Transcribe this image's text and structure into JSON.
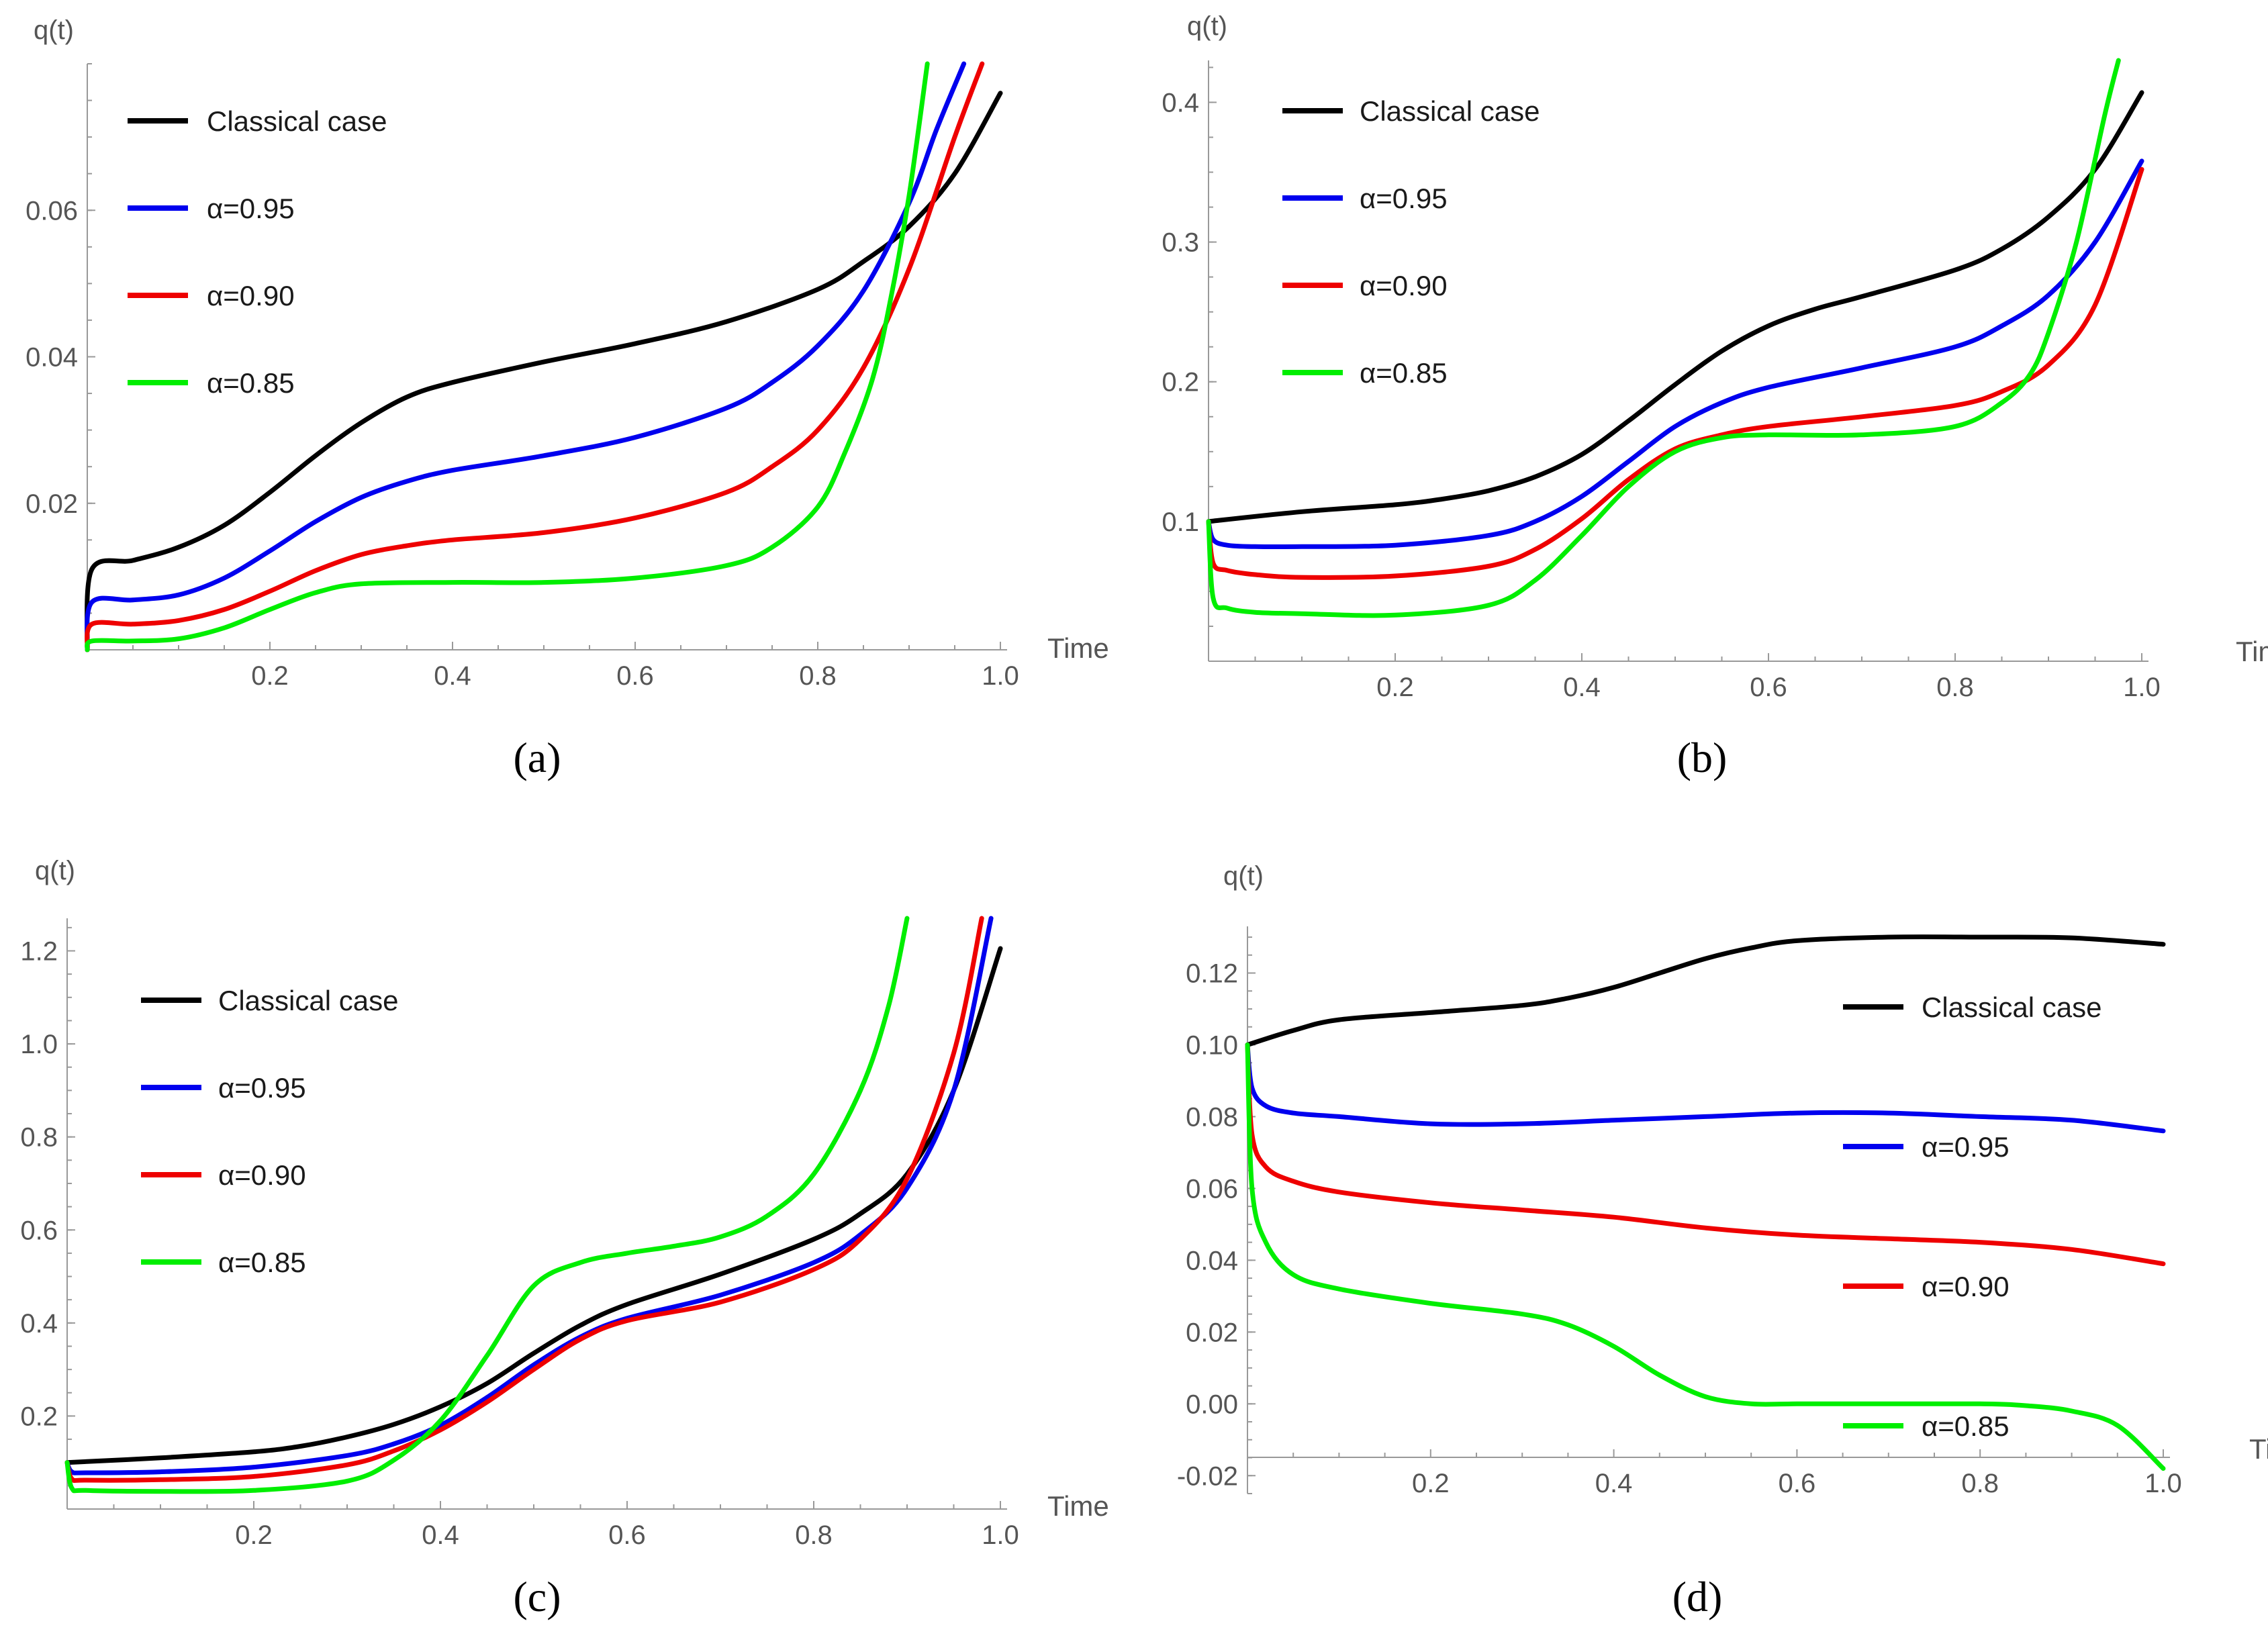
{
  "chart_data": [
    {
      "type": "line",
      "panel_label": "(a)",
      "ylabel": "q(t)",
      "xlabel": "Time",
      "xlim": [
        0,
        1.0
      ],
      "ylim": [
        0,
        0.08
      ],
      "x_ticks": [
        "0.2",
        "0.4",
        "0.6",
        "0.8",
        "1.0"
      ],
      "y_ticks": [
        "0.02",
        "0.04",
        "0.06"
      ],
      "legend_position": "top-left",
      "series": [
        {
          "name": "Classical case",
          "color": "#000000",
          "x": [
            0,
            0.005,
            0.05,
            0.1,
            0.15,
            0.2,
            0.25,
            0.3,
            0.35,
            0.4,
            0.5,
            0.6,
            0.7,
            0.8,
            0.85,
            0.9,
            0.95,
            1.0
          ],
          "values": [
            0.0,
            0.011,
            0.0122,
            0.014,
            0.017,
            0.0215,
            0.0265,
            0.031,
            0.0345,
            0.0365,
            0.0393,
            0.0418,
            0.0448,
            0.0492,
            0.053,
            0.0578,
            0.065,
            0.076
          ]
        },
        {
          "name": "α=0.95",
          "color": "#0000ee",
          "x": [
            0,
            0.005,
            0.05,
            0.1,
            0.15,
            0.2,
            0.25,
            0.3,
            0.35,
            0.4,
            0.5,
            0.6,
            0.7,
            0.75,
            0.8,
            0.85,
            0.9,
            0.93,
            0.96
          ],
          "values": [
            0.0,
            0.0065,
            0.0068,
            0.0075,
            0.0098,
            0.0135,
            0.0175,
            0.0208,
            0.023,
            0.0245,
            0.0265,
            0.029,
            0.033,
            0.0365,
            0.0415,
            0.049,
            0.061,
            0.071,
            0.08
          ]
        },
        {
          "name": "α=0.90",
          "color": "#ee0000",
          "x": [
            0,
            0.005,
            0.05,
            0.1,
            0.15,
            0.2,
            0.25,
            0.3,
            0.35,
            0.4,
            0.5,
            0.6,
            0.7,
            0.75,
            0.8,
            0.85,
            0.9,
            0.95,
            0.98
          ],
          "values": [
            0.0,
            0.0035,
            0.0035,
            0.004,
            0.0055,
            0.008,
            0.0108,
            0.013,
            0.0142,
            0.015,
            0.016,
            0.018,
            0.0215,
            0.025,
            0.03,
            0.0385,
            0.052,
            0.07,
            0.08
          ]
        },
        {
          "name": "α=0.85",
          "color": "#00ee00",
          "x": [
            0,
            0.005,
            0.05,
            0.1,
            0.15,
            0.2,
            0.25,
            0.3,
            0.4,
            0.5,
            0.6,
            0.7,
            0.75,
            0.8,
            0.83,
            0.86,
            0.88,
            0.9,
            0.92
          ],
          "values": [
            0.0,
            0.0012,
            0.0012,
            0.0015,
            0.003,
            0.0055,
            0.0078,
            0.009,
            0.0092,
            0.0092,
            0.0098,
            0.0115,
            0.014,
            0.0195,
            0.027,
            0.037,
            0.048,
            0.062,
            0.08
          ]
        }
      ]
    },
    {
      "type": "line",
      "panel_label": "(b)",
      "ylabel": "q(t)",
      "xlabel": "Time",
      "xlim": [
        0,
        1.0
      ],
      "ylim": [
        0,
        0.43
      ],
      "x_ticks": [
        "0.2",
        "0.4",
        "0.6",
        "0.8",
        "1.0"
      ],
      "y_ticks": [
        "0.1",
        "0.2",
        "0.3",
        "0.4"
      ],
      "legend_position": "top-left",
      "series": [
        {
          "name": "Classical case",
          "color": "#000000",
          "x": [
            0,
            0.1,
            0.2,
            0.25,
            0.3,
            0.35,
            0.4,
            0.45,
            0.5,
            0.55,
            0.6,
            0.65,
            0.7,
            0.8,
            0.85,
            0.9,
            0.95,
            1.0
          ],
          "values": [
            0.1,
            0.107,
            0.112,
            0.116,
            0.122,
            0.132,
            0.148,
            0.172,
            0.198,
            0.222,
            0.24,
            0.252,
            0.261,
            0.28,
            0.295,
            0.318,
            0.352,
            0.407
          ]
        },
        {
          "name": "α=0.95",
          "color": "#0000ee",
          "x": [
            0,
            0.005,
            0.02,
            0.05,
            0.1,
            0.2,
            0.3,
            0.35,
            0.4,
            0.45,
            0.5,
            0.55,
            0.6,
            0.7,
            0.8,
            0.85,
            0.9,
            0.95,
            1.0
          ],
          "values": [
            0.1,
            0.087,
            0.083,
            0.082,
            0.082,
            0.083,
            0.09,
            0.1,
            0.118,
            0.143,
            0.168,
            0.185,
            0.196,
            0.21,
            0.225,
            0.24,
            0.262,
            0.3,
            0.358
          ]
        },
        {
          "name": "α=0.90",
          "color": "#ee0000",
          "x": [
            0,
            0.005,
            0.02,
            0.05,
            0.1,
            0.2,
            0.3,
            0.35,
            0.4,
            0.45,
            0.5,
            0.55,
            0.6,
            0.7,
            0.8,
            0.85,
            0.9,
            0.95,
            1.0
          ],
          "values": [
            0.1,
            0.07,
            0.065,
            0.062,
            0.06,
            0.061,
            0.068,
            0.08,
            0.102,
            0.13,
            0.152,
            0.162,
            0.168,
            0.175,
            0.183,
            0.193,
            0.212,
            0.255,
            0.352
          ]
        },
        {
          "name": "α=0.85",
          "color": "#00ee00",
          "x": [
            0,
            0.005,
            0.02,
            0.05,
            0.1,
            0.2,
            0.3,
            0.35,
            0.4,
            0.45,
            0.5,
            0.55,
            0.6,
            0.7,
            0.8,
            0.85,
            0.88,
            0.9,
            0.93,
            0.96,
            0.975
          ],
          "values": [
            0.1,
            0.045,
            0.038,
            0.035,
            0.034,
            0.033,
            0.04,
            0.058,
            0.09,
            0.125,
            0.15,
            0.16,
            0.162,
            0.162,
            0.168,
            0.185,
            0.205,
            0.235,
            0.3,
            0.39,
            0.43
          ]
        }
      ]
    },
    {
      "type": "line",
      "panel_label": "(c)",
      "ylabel": "q(t)",
      "xlabel": "Time",
      "xlim": [
        0,
        1.0
      ],
      "ylim": [
        0,
        1.27
      ],
      "x_ticks": [
        "0.2",
        "0.4",
        "0.6",
        "0.8",
        "1.0"
      ],
      "y_ticks": [
        "0.2",
        "0.4",
        "0.6",
        "0.8",
        "1.0",
        "1.2"
      ],
      "legend_position": "top-left",
      "series": [
        {
          "name": "Classical case",
          "color": "#000000",
          "x": [
            0,
            0.1,
            0.2,
            0.25,
            0.3,
            0.35,
            0.4,
            0.45,
            0.5,
            0.55,
            0.6,
            0.7,
            0.8,
            0.85,
            0.9,
            0.95,
            1.0
          ],
          "values": [
            0.1,
            0.11,
            0.123,
            0.135,
            0.155,
            0.182,
            0.22,
            0.27,
            0.335,
            0.395,
            0.44,
            0.505,
            0.58,
            0.635,
            0.72,
            0.9,
            1.205
          ]
        },
        {
          "name": "α=0.95",
          "color": "#0000ee",
          "x": [
            0,
            0.005,
            0.02,
            0.1,
            0.2,
            0.3,
            0.35,
            0.4,
            0.45,
            0.5,
            0.55,
            0.6,
            0.7,
            0.8,
            0.85,
            0.9,
            0.95,
            0.99
          ],
          "values": [
            0.1,
            0.08,
            0.078,
            0.08,
            0.09,
            0.115,
            0.14,
            0.18,
            0.24,
            0.31,
            0.37,
            0.41,
            0.46,
            0.53,
            0.59,
            0.69,
            0.9,
            1.27
          ]
        },
        {
          "name": "α=0.90",
          "color": "#ee0000",
          "x": [
            0,
            0.005,
            0.02,
            0.1,
            0.2,
            0.3,
            0.35,
            0.4,
            0.45,
            0.5,
            0.55,
            0.6,
            0.7,
            0.8,
            0.85,
            0.9,
            0.95,
            0.98
          ],
          "values": [
            0.1,
            0.065,
            0.062,
            0.063,
            0.07,
            0.095,
            0.125,
            0.17,
            0.23,
            0.3,
            0.365,
            0.405,
            0.445,
            0.515,
            0.58,
            0.71,
            0.98,
            1.27
          ]
        },
        {
          "name": "α=0.85",
          "color": "#00ee00",
          "x": [
            0,
            0.005,
            0.02,
            0.1,
            0.2,
            0.3,
            0.35,
            0.4,
            0.45,
            0.5,
            0.55,
            0.6,
            0.65,
            0.7,
            0.75,
            0.8,
            0.85,
            0.88,
            0.9
          ],
          "values": [
            0.1,
            0.045,
            0.04,
            0.038,
            0.04,
            0.06,
            0.105,
            0.19,
            0.33,
            0.48,
            0.53,
            0.55,
            0.565,
            0.585,
            0.63,
            0.72,
            0.9,
            1.08,
            1.27
          ]
        }
      ]
    },
    {
      "type": "line",
      "panel_label": "(d)",
      "ylabel": "q(t)",
      "xlabel": "Time",
      "xlim": [
        0,
        1.0
      ],
      "ylim": [
        -0.025,
        0.133
      ],
      "x_ticks": [
        "0.2",
        "0.4",
        "0.6",
        "0.8",
        "1.0"
      ],
      "y_ticks": [
        "-0.02",
        "0.00",
        "0.02",
        "0.04",
        "0.06",
        "0.08",
        "0.10",
        "0.12"
      ],
      "legend_position": "right",
      "series": [
        {
          "name": "Classical case",
          "color": "#000000",
          "x": [
            0,
            0.05,
            0.1,
            0.2,
            0.3,
            0.35,
            0.4,
            0.45,
            0.5,
            0.55,
            0.6,
            0.7,
            0.8,
            0.9,
            1.0
          ],
          "values": [
            0.1,
            0.104,
            0.107,
            0.109,
            0.111,
            0.113,
            0.116,
            0.12,
            0.124,
            0.127,
            0.129,
            0.13,
            0.13,
            0.1298,
            0.128
          ]
        },
        {
          "name": "α=0.95",
          "color": "#0000ee",
          "x": [
            0,
            0.005,
            0.02,
            0.05,
            0.1,
            0.2,
            0.3,
            0.4,
            0.5,
            0.6,
            0.7,
            0.8,
            0.9,
            1.0
          ],
          "values": [
            0.1,
            0.088,
            0.083,
            0.081,
            0.08,
            0.078,
            0.078,
            0.079,
            0.08,
            0.081,
            0.081,
            0.08,
            0.079,
            0.076
          ]
        },
        {
          "name": "α=0.90",
          "color": "#ee0000",
          "x": [
            0,
            0.005,
            0.02,
            0.05,
            0.1,
            0.2,
            0.3,
            0.4,
            0.5,
            0.6,
            0.7,
            0.8,
            0.9,
            1.0
          ],
          "values": [
            0.1,
            0.075,
            0.066,
            0.062,
            0.059,
            0.056,
            0.054,
            0.052,
            0.049,
            0.047,
            0.046,
            0.045,
            0.043,
            0.039
          ]
        },
        {
          "name": "α=0.85",
          "color": "#00ee00",
          "x": [
            0,
            0.005,
            0.02,
            0.05,
            0.1,
            0.2,
            0.3,
            0.35,
            0.4,
            0.45,
            0.5,
            0.55,
            0.6,
            0.7,
            0.8,
            0.85,
            0.9,
            0.95,
            1.0
          ],
          "values": [
            0.1,
            0.06,
            0.045,
            0.036,
            0.032,
            0.028,
            0.025,
            0.022,
            0.016,
            0.008,
            0.002,
            0.0,
            0.0,
            0.0,
            0.0,
            -0.0005,
            -0.002,
            -0.006,
            -0.018
          ]
        }
      ]
    }
  ]
}
